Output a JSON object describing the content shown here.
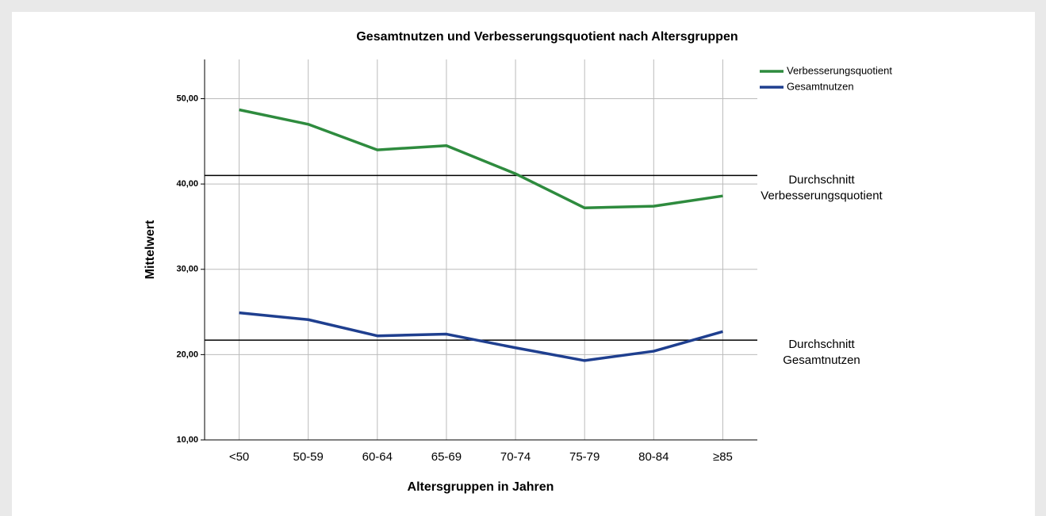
{
  "chart_data": {
    "type": "line",
    "title": "Gesamtnutzen und Verbesserungsquotient nach Altersgruppen",
    "x_label": "Altersgruppen in Jahren",
    "y_label": "Mittelwert",
    "categories": [
      "<50",
      "50-59",
      "60-64",
      "65-69",
      "70-74",
      "75-79",
      "80-84",
      "≥85"
    ],
    "series": [
      {
        "name": "Verbesserungsquotient",
        "color": "#2e8b3e",
        "values": [
          48.7,
          47.0,
          44.0,
          44.5,
          41.2,
          37.2,
          37.4,
          38.6
        ]
      },
      {
        "name": "Gesamtnutzen",
        "color": "#1f3f8f",
        "values": [
          24.9,
          24.1,
          22.2,
          22.4,
          20.8,
          19.3,
          20.4,
          22.7
        ]
      }
    ],
    "reference_lines": [
      {
        "value": 41.0,
        "label": [
          "Durchschnitt",
          "Verbesserungsquotient"
        ]
      },
      {
        "value": 21.7,
        "label": [
          "Durchschnitt",
          "Gesamtnutzen"
        ]
      }
    ],
    "ylim": [
      10,
      54.6
    ],
    "yticks": [
      {
        "value": 10,
        "label": "10,00"
      },
      {
        "value": 20,
        "label": "20,00"
      },
      {
        "value": 30,
        "label": "30,00"
      },
      {
        "value": 40,
        "label": "40,00"
      },
      {
        "value": 50,
        "label": "50,00"
      }
    ],
    "grid": true,
    "legend_position": "top-right"
  }
}
